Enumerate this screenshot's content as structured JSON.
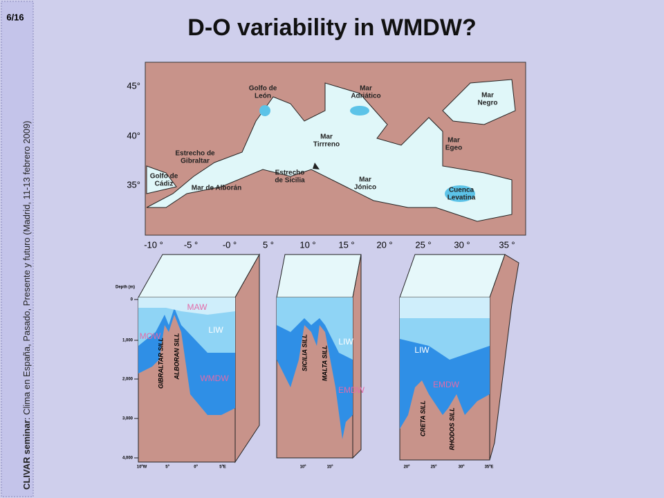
{
  "slide": {
    "number": "6/16",
    "title": "D-O variability in WMDW?"
  },
  "sidebar": {
    "event": "CLIVAR seminar",
    "detail": ": Clima en España, Pasado, Presente y futuro (Madrid, 11-13 febrero 2009)"
  },
  "map": {
    "lat_labels": [
      "45°",
      "40°",
      "35°"
    ],
    "lon_labels": [
      "-10 °",
      "-5 °",
      "-0 °",
      "5 °",
      "10 °",
      "15 °",
      "20 °",
      "25 °",
      "30 °",
      "35 °"
    ],
    "places": [
      {
        "lines": [
          "Golfo de",
          "León"
        ]
      },
      {
        "lines": [
          "Mar",
          "Adriático"
        ]
      },
      {
        "lines": [
          "Mar",
          "Negro"
        ]
      },
      {
        "lines": [
          "Mar",
          "Tirrreno"
        ]
      },
      {
        "lines": [
          "Mar",
          "Egeo"
        ]
      },
      {
        "lines": [
          "Estrecho de",
          "Gibraltar"
        ]
      },
      {
        "lines": [
          "Golfo de",
          "Cádiz"
        ]
      },
      {
        "lines": [
          "Estrecho",
          "de Sicilia"
        ]
      },
      {
        "lines": [
          "Mar",
          "Jónico"
        ]
      },
      {
        "lines": [
          "Cuenca",
          "Levatina"
        ]
      },
      {
        "lines": [
          "Mar de Alborán"
        ]
      }
    ]
  },
  "sections": [
    {
      "depth_title": "Depth (m)",
      "depth_labels": [
        "0",
        "1,000",
        "2,000",
        "3,000",
        "4,000"
      ],
      "water_masses": [
        "MAW",
        "LIW",
        "MOW",
        "WMDW"
      ],
      "sills": [
        "GIBRALTAR SILL",
        "ALBORAN SILL"
      ],
      "lon_labels": [
        "10ºW",
        "5º",
        "0º",
        "5ºE"
      ]
    },
    {
      "water_masses": [
        "LIW",
        "EMDW"
      ],
      "sills": [
        "SICILIA SILL",
        "MALTA SILL"
      ],
      "lon_labels": [
        "10º",
        "15º"
      ]
    },
    {
      "water_masses": [
        "LIW",
        "EMDW"
      ],
      "sills": [
        "CRETA SILL",
        "RHODOS SILL"
      ],
      "lon_labels": [
        "20º",
        "25º",
        "30º",
        "35ºE"
      ]
    }
  ]
}
